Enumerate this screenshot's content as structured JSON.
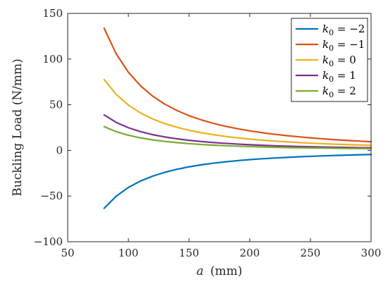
{
  "chart_data": {
    "type": "line",
    "title": "",
    "xlabel_var": "a",
    "xlabel_unit": "(mm)",
    "ylabel": "Buckling Load (N/mm)",
    "xlim": [
      50,
      300
    ],
    "ylim": [
      -100,
      150
    ],
    "xticks": [
      50,
      100,
      150,
      200,
      250,
      300
    ],
    "yticks": [
      -100,
      -50,
      0,
      50,
      100,
      150
    ],
    "xtick_labels": [
      "50",
      "100",
      "150",
      "200",
      "250",
      "300"
    ],
    "ytick_labels": [
      "−100",
      "−50",
      "0",
      "50",
      "100",
      "150"
    ],
    "legend_position": "top-right",
    "grid": false,
    "x": [
      80,
      90,
      100,
      110,
      120,
      130,
      140,
      150,
      160,
      170,
      180,
      190,
      200,
      210,
      220,
      230,
      240,
      250,
      260,
      270,
      280,
      290,
      300
    ],
    "series": [
      {
        "name_var": "k",
        "name_sub": "0",
        "name_eq": " = −2",
        "color": "#0072BD",
        "values": [
          -63.4,
          -50.1,
          -40.6,
          -33.5,
          -28.2,
          -24.0,
          -20.7,
          -18.0,
          -15.8,
          -14.0,
          -12.5,
          -11.2,
          -10.1,
          -9.2,
          -8.4,
          -7.7,
          -7.0,
          -6.5,
          -6.0,
          -5.6,
          -5.2,
          -4.8,
          -4.5
        ]
      },
      {
        "name_var": "k",
        "name_sub": "0",
        "name_eq": " = −1",
        "color": "#D95319",
        "values": [
          133.7,
          105.6,
          85.6,
          70.7,
          59.4,
          50.6,
          43.7,
          38.0,
          33.4,
          29.6,
          26.4,
          23.7,
          21.4,
          19.4,
          17.7,
          16.2,
          14.9,
          13.7,
          12.7,
          11.7,
          10.9,
          10.2,
          9.5
        ]
      },
      {
        "name_var": "k",
        "name_sub": "0",
        "name_eq": " = 0",
        "color": "#EDB120",
        "values": [
          77.5,
          61.2,
          49.6,
          41.0,
          34.4,
          29.3,
          25.3,
          22.0,
          19.4,
          17.2,
          15.3,
          13.7,
          12.4,
          11.2,
          10.2,
          9.4,
          8.6,
          7.9,
          7.3,
          6.8,
          6.3,
          5.9,
          5.5
        ]
      },
      {
        "name_var": "k",
        "name_sub": "0",
        "name_eq": " = 1",
        "color": "#7E2F8E",
        "values": [
          38.8,
          30.6,
          24.8,
          20.5,
          17.2,
          14.7,
          12.7,
          11.0,
          9.7,
          8.6,
          7.7,
          6.9,
          6.2,
          5.6,
          5.1,
          4.7,
          4.3,
          4.0,
          3.7,
          3.4,
          3.2,
          2.9,
          2.8
        ]
      },
      {
        "name_var": "k",
        "name_sub": "0",
        "name_eq": " = 2",
        "color": "#77AC30",
        "values": [
          26.0,
          20.5,
          16.6,
          13.7,
          11.5,
          9.8,
          8.5,
          7.4,
          6.5,
          5.7,
          5.1,
          4.6,
          4.2,
          3.8,
          3.4,
          3.1,
          2.9,
          2.7,
          2.5,
          2.3,
          2.1,
          2.0,
          1.9
        ]
      }
    ]
  }
}
